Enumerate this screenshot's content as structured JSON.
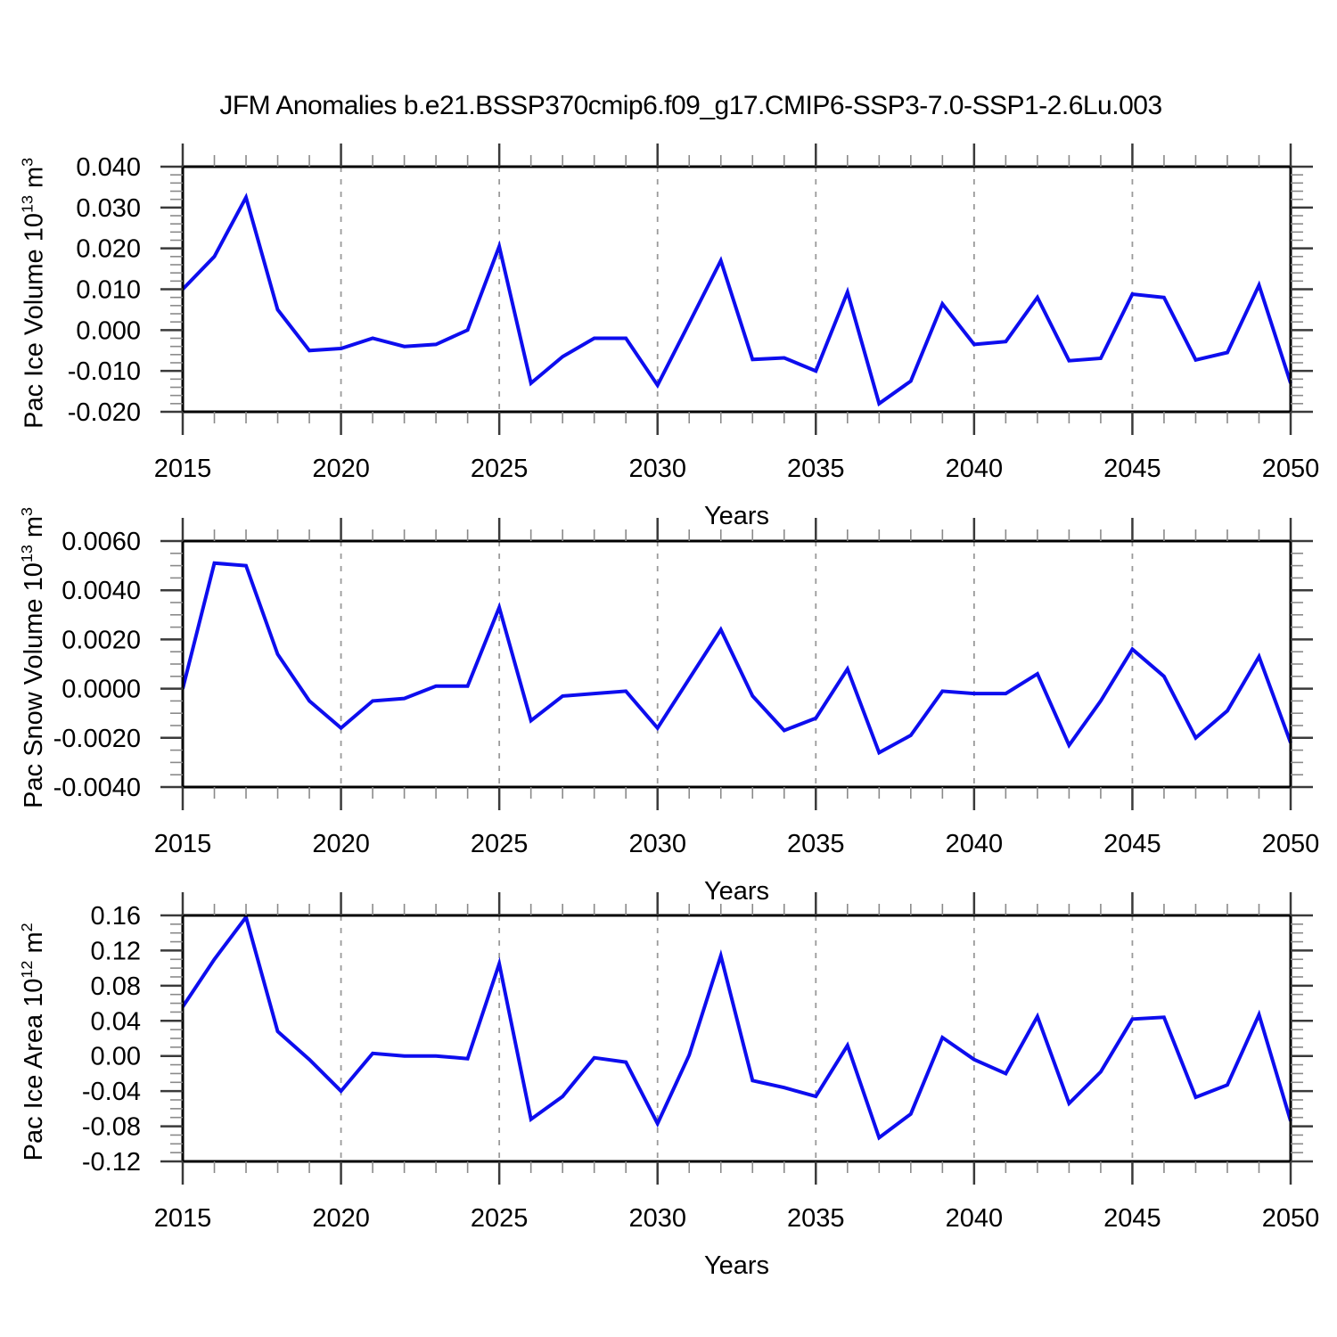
{
  "title": "JFM Anomalies b.e21.BSSP370cmip6.f09_g17.CMIP6-SSP3-7.0-SSP1-2.6Lu.003",
  "line_color": "#0D0DEE",
  "axis_color": "#000000",
  "major_tick_color": "#3a3a3a",
  "minor_tick_color": "#8a8a8a",
  "grid_color": "#9a9a9a",
  "chart_data": [
    {
      "id": "pac-ice-volume",
      "type": "line",
      "title": "",
      "ylabel": "Pac Ice Volume 10^13 m^3",
      "ylabel_parts": [
        {
          "text": "Pac Ice Volume 10"
        },
        {
          "sup": "13"
        },
        {
          "text": " m"
        },
        {
          "sup": "3"
        }
      ],
      "xlabel": "Years",
      "xlim": [
        2015,
        2050
      ],
      "ylim": [
        -0.02,
        0.04
      ],
      "xticks": [
        2015,
        2020,
        2025,
        2030,
        2035,
        2040,
        2045,
        2050
      ],
      "xtick_labels": [
        "2015",
        "2020",
        "2025",
        "2030",
        "2035",
        "2040",
        "2045",
        "2050"
      ],
      "x_minor_step": 1,
      "yticks": [
        0.04,
        0.03,
        0.02,
        0.01,
        0.0,
        -0.01,
        -0.02
      ],
      "ytick_labels": [
        "0.040",
        "0.030",
        "0.020",
        "0.010",
        "0.000",
        "-0.010",
        "-0.020"
      ],
      "y_minor_step": 0.002,
      "grid_x_dashed": [
        2020,
        2025,
        2030,
        2035,
        2040,
        2045
      ],
      "x": [
        2015,
        2016,
        2017,
        2018,
        2019,
        2020,
        2021,
        2022,
        2023,
        2024,
        2025,
        2026,
        2027,
        2028,
        2029,
        2030,
        2031,
        2032,
        2033,
        2034,
        2035,
        2036,
        2037,
        2038,
        2039,
        2040,
        2041,
        2042,
        2043,
        2044,
        2045,
        2046,
        2047,
        2048,
        2049,
        2050
      ],
      "values": [
        0.01,
        0.018,
        0.0325,
        0.005,
        -0.005,
        -0.0045,
        -0.002,
        -0.004,
        -0.0035,
        0.0,
        0.0205,
        -0.013,
        -0.0065,
        -0.002,
        -0.002,
        -0.0135,
        0.0017,
        0.017,
        -0.0072,
        -0.0068,
        -0.01,
        0.0093,
        -0.018,
        -0.0125,
        0.0064,
        -0.0035,
        -0.0028,
        0.008,
        -0.0075,
        -0.0069,
        0.0088,
        0.008,
        -0.0073,
        -0.0055,
        0.011,
        -0.013
      ]
    },
    {
      "id": "pac-snow-volume",
      "type": "line",
      "title": "",
      "ylabel": "Pac Snow Volume 10^13 m^3",
      "ylabel_parts": [
        {
          "text": "Pac Snow Volume 10"
        },
        {
          "sup": "13"
        },
        {
          "text": " m"
        },
        {
          "sup": "3"
        }
      ],
      "xlabel": "Years",
      "xlim": [
        2015,
        2050
      ],
      "ylim": [
        -0.004,
        0.006
      ],
      "xticks": [
        2015,
        2020,
        2025,
        2030,
        2035,
        2040,
        2045,
        2050
      ],
      "xtick_labels": [
        "2015",
        "2020",
        "2025",
        "2030",
        "2035",
        "2040",
        "2045",
        "2050"
      ],
      "x_minor_step": 1,
      "yticks": [
        0.006,
        0.004,
        0.002,
        0.0,
        -0.002,
        -0.004
      ],
      "ytick_labels": [
        "0.0060",
        "0.0040",
        "0.0020",
        "0.0000",
        "-0.0020",
        "-0.0040"
      ],
      "y_minor_step": 0.0005,
      "grid_x_dashed": [
        2020,
        2025,
        2030,
        2035,
        2040,
        2045
      ],
      "x": [
        2015,
        2016,
        2017,
        2018,
        2019,
        2020,
        2021,
        2022,
        2023,
        2024,
        2025,
        2026,
        2027,
        2028,
        2029,
        2030,
        2031,
        2032,
        2033,
        2034,
        2035,
        2036,
        2037,
        2038,
        2039,
        2040,
        2041,
        2042,
        2043,
        2044,
        2045,
        2046,
        2047,
        2048,
        2049,
        2050
      ],
      "values": [
        0.0,
        0.0051,
        0.005,
        0.0014,
        -0.0005,
        -0.0016,
        -0.0005,
        -0.0004,
        0.0001,
        0.0001,
        0.0033,
        -0.0013,
        -0.0003,
        -0.0002,
        -0.0001,
        -0.0016,
        0.0004,
        0.0024,
        -0.0003,
        -0.0017,
        -0.0012,
        0.0008,
        -0.0026,
        -0.0019,
        -0.0001,
        -0.0002,
        -0.0002,
        0.0006,
        -0.0023,
        -0.0005,
        0.0016,
        0.0005,
        -0.002,
        -0.0009,
        0.0013,
        -0.0022
      ]
    },
    {
      "id": "pac-ice-area",
      "type": "line",
      "title": "",
      "ylabel": "Pac Ice Area 10^12 m^2",
      "ylabel_parts": [
        {
          "text": "Pac Ice Area 10"
        },
        {
          "sup": "12"
        },
        {
          "text": " m"
        },
        {
          "sup": "2"
        }
      ],
      "xlabel": "Years",
      "xlim": [
        2015,
        2050
      ],
      "ylim": [
        -0.12,
        0.16
      ],
      "xticks": [
        2015,
        2020,
        2025,
        2030,
        2035,
        2040,
        2045,
        2050
      ],
      "xtick_labels": [
        "2015",
        "2020",
        "2025",
        "2030",
        "2035",
        "2040",
        "2045",
        "2050"
      ],
      "x_minor_step": 1,
      "yticks": [
        0.16,
        0.12,
        0.08,
        0.04,
        0.0,
        -0.04,
        -0.08,
        -0.12
      ],
      "ytick_labels": [
        "0.16",
        "0.12",
        "0.08",
        "0.04",
        "0.00",
        "-0.04",
        "-0.08",
        "-0.12"
      ],
      "y_minor_step": 0.01,
      "grid_x_dashed": [
        2020,
        2025,
        2030,
        2035,
        2040,
        2045
      ],
      "x": [
        2015,
        2016,
        2017,
        2018,
        2019,
        2020,
        2021,
        2022,
        2023,
        2024,
        2025,
        2026,
        2027,
        2028,
        2029,
        2030,
        2031,
        2032,
        2033,
        2034,
        2035,
        2036,
        2037,
        2038,
        2039,
        2040,
        2041,
        2042,
        2043,
        2044,
        2045,
        2046,
        2047,
        2048,
        2049,
        2050
      ],
      "values": [
        0.056,
        0.11,
        0.158,
        0.028,
        -0.004,
        -0.04,
        0.003,
        0.0,
        0.0,
        -0.003,
        0.105,
        -0.072,
        -0.046,
        -0.002,
        -0.007,
        -0.077,
        0.001,
        0.114,
        -0.028,
        -0.036,
        -0.046,
        0.012,
        -0.093,
        -0.066,
        0.021,
        -0.004,
        -0.02,
        0.045,
        -0.054,
        -0.018,
        0.042,
        0.044,
        -0.047,
        -0.033,
        0.047,
        -0.074
      ]
    }
  ]
}
